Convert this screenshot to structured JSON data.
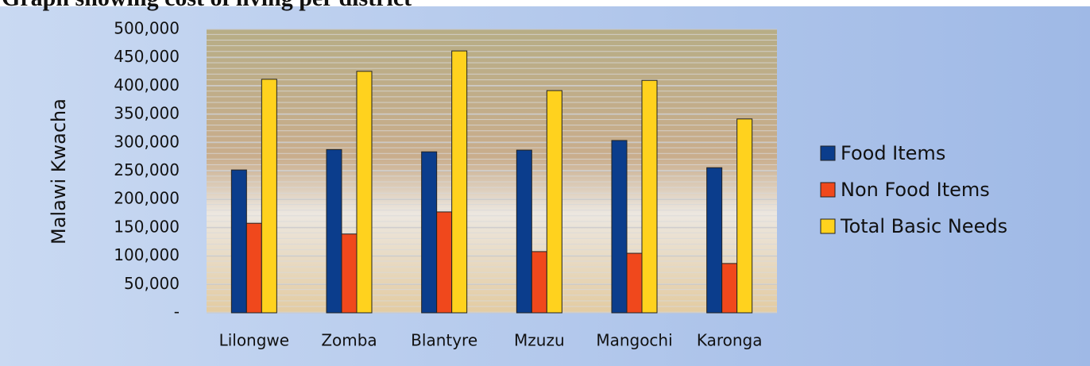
{
  "chart_data": {
    "type": "bar",
    "title": "Graph showing cost of living per district",
    "y_label": "Malawi Kwacha",
    "categories": [
      "Lilongwe",
      "Zomba",
      "Blantyre",
      "Mzuzu",
      "Mangochi",
      "Karonga"
    ],
    "series": [
      {
        "name": "Food Items",
        "color": "#0b3d8c",
        "values": [
          252000,
          288000,
          284000,
          287000,
          304000,
          256000
        ]
      },
      {
        "name": "Non Food Items",
        "color": "#f0481c",
        "values": [
          158000,
          139000,
          178000,
          108000,
          105000,
          87000
        ]
      },
      {
        "name": "Total Basic Needs",
        "color": "#ffd21e",
        "values": [
          412000,
          426000,
          462000,
          392000,
          410000,
          342000
        ]
      }
    ],
    "ylim": [
      0,
      500000
    ],
    "yticks": [
      {
        "value": 0,
        "label": "-"
      },
      {
        "value": 50000,
        "label": "50,000"
      },
      {
        "value": 100000,
        "label": "100,000"
      },
      {
        "value": 150000,
        "label": "150,000"
      },
      {
        "value": 200000,
        "label": "200,000"
      },
      {
        "value": 250000,
        "label": "250,000"
      },
      {
        "value": 300000,
        "label": "300,000"
      },
      {
        "value": 350000,
        "label": "350,000"
      },
      {
        "value": 400000,
        "label": "400,000"
      },
      {
        "value": 450000,
        "label": "450,000"
      },
      {
        "value": 500000,
        "label": "500,000"
      }
    ],
    "grid": true,
    "legend": "right"
  }
}
